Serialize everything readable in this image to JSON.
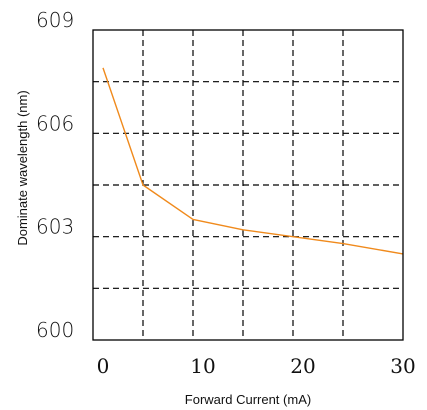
{
  "chart_data": {
    "type": "line",
    "xlabel": "Forward Current (mA)",
    "ylabel": "Dominate wavelength (nm)",
    "xlim": [
      -1.0,
      30.0
    ],
    "ylim": [
      600,
      609
    ],
    "xticks": [
      0,
      10,
      20,
      30
    ],
    "xtick_labels": [
      "0",
      "10",
      "20",
      "30"
    ],
    "yticks": [
      600,
      603,
      606,
      609
    ],
    "ytick_labels": [
      "600",
      "603",
      "606",
      "609"
    ],
    "x_gridlines": [
      4.0,
      9.0,
      14.0,
      19.0,
      24.0
    ],
    "y_gridlines": [
      601.5,
      603.0,
      604.5,
      606.0,
      607.5
    ],
    "grid": true,
    "grid_style": "dashed",
    "legend": "none",
    "series": [
      {
        "color": "#f08a1c",
        "x": [
          0,
          4,
          9,
          14,
          19,
          24,
          30
        ],
        "y": [
          607.9,
          604.5,
          603.5,
          603.2,
          603.0,
          602.8,
          602.5
        ]
      }
    ]
  }
}
